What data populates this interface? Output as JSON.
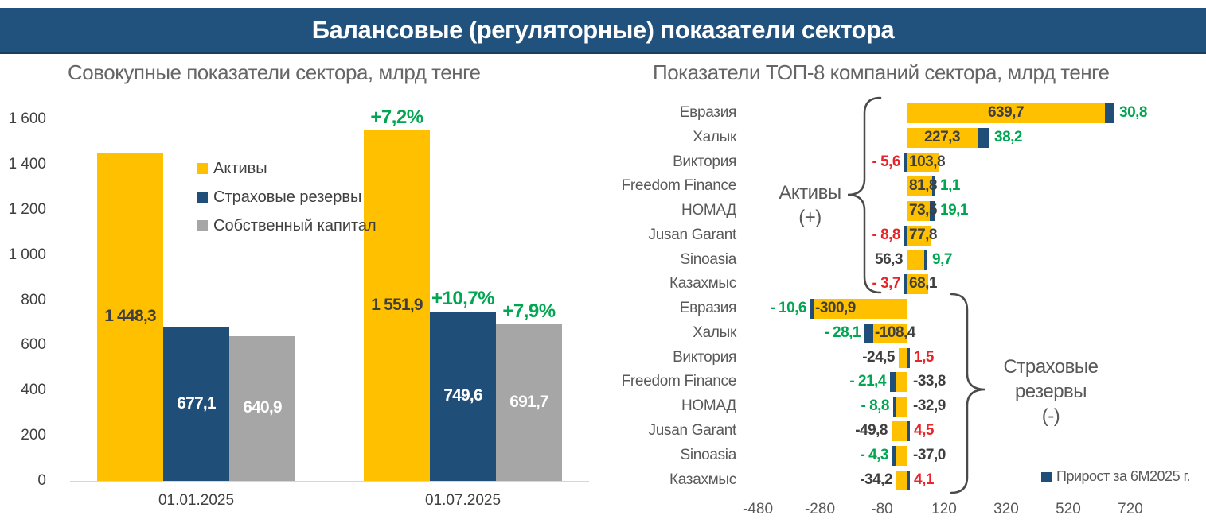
{
  "header": {
    "title": "Балансовые (регуляторные) показатели сектора"
  },
  "colors": {
    "yellow": "#FFC000",
    "navy": "#1F4E78",
    "gray": "#A6A6A6",
    "green": "#00A651",
    "red": "#E8232A",
    "text_dark": "#3F3F3F",
    "text_med": "#595959",
    "axis_line": "#D6D6D6",
    "header_bg": "#21527D",
    "white": "#FFFFFF"
  },
  "chart_data": [
    {
      "type": "bar",
      "title": "Совокупные показатели сектора, млрд тенге",
      "ylim": [
        0,
        1600
      ],
      "grid": false,
      "legend_position": "inside-left",
      "yticks": [
        {
          "v": 0,
          "label": "0"
        },
        {
          "v": 200,
          "label": "200"
        },
        {
          "v": 400,
          "label": "400"
        },
        {
          "v": 600,
          "label": "600"
        },
        {
          "v": 800,
          "label": "800"
        },
        {
          "v": 1000,
          "label": "1 000"
        },
        {
          "v": 1200,
          "label": "1 200"
        },
        {
          "v": 1400,
          "label": "1 400"
        },
        {
          "v": 1600,
          "label": "1 600"
        }
      ],
      "categories": [
        "01.01.2025",
        "01.07.2025"
      ],
      "legend": [
        {
          "label": "Активы",
          "color": "#FFC000"
        },
        {
          "label": "Страховые резервы",
          "color": "#1F4E78"
        },
        {
          "label": "Собственный капитал",
          "color": "#A6A6A6"
        }
      ],
      "series": [
        {
          "name": "Активы",
          "color": "#FFC000",
          "label_color": "#3F3F3F",
          "values": [
            1448.3,
            1551.9
          ],
          "value_labels": [
            "1 448,3",
            "1 551,9"
          ],
          "growth_labels": [
            null,
            "+7,2%"
          ]
        },
        {
          "name": "Страховые резервы",
          "color": "#1F4E78",
          "label_color": "#FFFFFF",
          "values": [
            677.1,
            749.6
          ],
          "value_labels": [
            "677,1",
            "749,6"
          ],
          "growth_labels": [
            null,
            "+10,7%"
          ]
        },
        {
          "name": "Собственный капитал",
          "color": "#A6A6A6",
          "label_color": "#FFFFFF",
          "values": [
            640.9,
            691.7
          ],
          "value_labels": [
            "640,9",
            "691,7"
          ],
          "growth_labels": [
            null,
            "+7,9%"
          ]
        }
      ]
    },
    {
      "type": "bar-horizontal",
      "title": "Показатели ТОП-8 компаний сектора, млрд тенге",
      "xticks": [
        {
          "v": -480,
          "label": "-480"
        },
        {
          "v": -280,
          "label": "-280"
        },
        {
          "v": -80,
          "label": "-80"
        },
        {
          "v": 120,
          "label": "120"
        },
        {
          "v": 320,
          "label": "320"
        },
        {
          "v": 520,
          "label": "520"
        },
        {
          "v": 720,
          "label": "720"
        }
      ],
      "legend": {
        "label": "Прирост за 6М2025 г.",
        "color": "#1F4E78"
      },
      "group_labels": {
        "top": [
          "Активы",
          "(+)"
        ],
        "bottom": [
          "Страховые",
          "резервы",
          "(-)"
        ]
      },
      "rows": [
        {
          "company": "Евразия",
          "value": 639.7,
          "value_label": "639,7",
          "value_pos": "inside-center",
          "delta": 30.8,
          "delta_label": "30,8",
          "delta_style": "green",
          "seg": "end"
        },
        {
          "company": "Халык",
          "value": 227.3,
          "value_label": "227,3",
          "value_pos": "inside-center",
          "delta": 38.2,
          "delta_label": "38,2",
          "delta_style": "green",
          "seg": "end"
        },
        {
          "company": "Виктория",
          "value": 103.8,
          "value_label": "103,8",
          "value_pos": "inside-left",
          "delta": -5.6,
          "delta_label": "- 5,6",
          "delta_style": "red",
          "seg": "axis"
        },
        {
          "company": "Freedom Finance",
          "value": 81.8,
          "value_label": "81,8",
          "value_pos": "inside-left",
          "delta": 1.1,
          "delta_label": "1,1",
          "delta_style": "green",
          "seg": "end"
        },
        {
          "company": "НОМАД",
          "value": 73.5,
          "value_label": "73,5",
          "value_pos": "inside-left",
          "delta": 19.1,
          "delta_label": "19,1",
          "delta_style": "green",
          "seg": "end"
        },
        {
          "company": "Jusan Garant",
          "value": 77.8,
          "value_label": "77,8",
          "value_pos": "inside-left",
          "delta": -8.8,
          "delta_label": "- 8,8",
          "delta_style": "red",
          "seg": "axis"
        },
        {
          "company": "Sinoasia",
          "value": 56.3,
          "value_label": "56,3",
          "value_pos": "outside",
          "delta": 9.7,
          "delta_label": "9,7",
          "delta_style": "green",
          "seg": "end"
        },
        {
          "company": "Казахмыс",
          "value": 68.1,
          "value_label": "68,1",
          "value_pos": "inside-left",
          "delta": -3.7,
          "delta_label": "- 3,7",
          "delta_style": "red",
          "seg": "axis"
        },
        {
          "company": "Евразия",
          "value": -300.9,
          "value_label": "-300,9",
          "value_pos": "inside-left",
          "delta": -10.6,
          "delta_label": "- 10,6",
          "delta_style": "green",
          "seg": "end"
        },
        {
          "company": "Халык",
          "value": -108.4,
          "value_label": "-108,4",
          "value_pos": "inside-left",
          "delta": -28.1,
          "delta_label": "- 28,1",
          "delta_style": "green",
          "seg": "end"
        },
        {
          "company": "Виктория",
          "value": -24.5,
          "value_label": "-24,5",
          "value_pos": "outside",
          "delta": 1.5,
          "delta_label": "1,5",
          "delta_style": "red",
          "seg": "axis"
        },
        {
          "company": "Freedom Finance",
          "value": -33.8,
          "value_label": "-33,8",
          "value_pos": "opposite",
          "delta": -21.4,
          "delta_label": "- 21,4",
          "delta_style": "green",
          "seg": "end"
        },
        {
          "company": "НОМАД",
          "value": -32.9,
          "value_label": "-32,9",
          "value_pos": "opposite",
          "delta": -8.8,
          "delta_label": "- 8,8",
          "delta_style": "green",
          "seg": "end"
        },
        {
          "company": "Jusan Garant",
          "value": -49.8,
          "value_label": "-49,8",
          "value_pos": "outside",
          "delta": 4.5,
          "delta_label": "4,5",
          "delta_style": "red",
          "seg": "axis"
        },
        {
          "company": "Sinoasia",
          "value": -37.0,
          "value_label": "-37,0",
          "value_pos": "opposite",
          "delta": -4.3,
          "delta_label": "- 4,3",
          "delta_style": "green",
          "seg": "end"
        },
        {
          "company": "Казахмыс",
          "value": -34.2,
          "value_label": "-34,2",
          "value_pos": "outside",
          "delta": 4.1,
          "delta_label": "4,1",
          "delta_style": "red",
          "seg": "axis"
        }
      ]
    }
  ]
}
